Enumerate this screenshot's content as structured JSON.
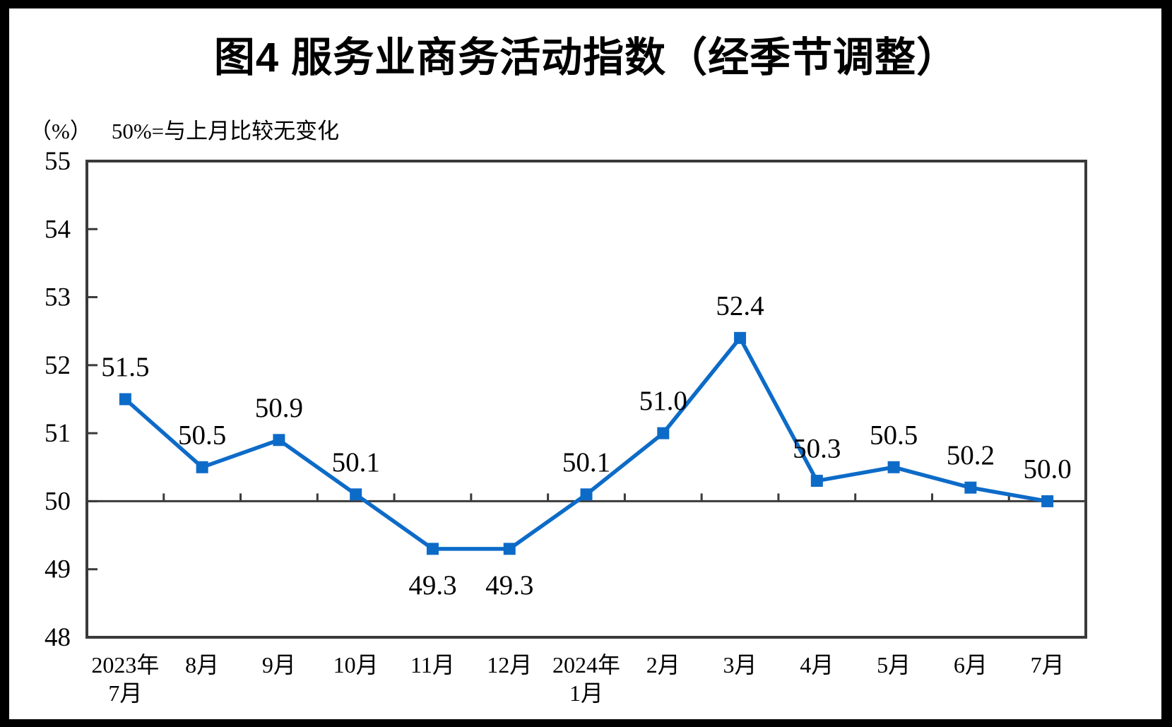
{
  "figure": {
    "title": "图4 服务业商务活动指数（经季节调整）",
    "unit_label": "（%）",
    "note": "50%=与上月比较无变化"
  },
  "chart_data": {
    "type": "line",
    "title": "图4 服务业商务活动指数（经季节调整）",
    "unit": "（%）",
    "note": "50%=与上月比较无变化",
    "categories": [
      "2023年\n7月",
      "8月",
      "9月",
      "10月",
      "11月",
      "12月",
      "2024年\n1月",
      "2月",
      "3月",
      "4月",
      "5月",
      "6月",
      "7月"
    ],
    "series": [
      {
        "name": "服务业商务活动指数",
        "values": [
          51.5,
          50.5,
          50.9,
          50.1,
          49.3,
          49.3,
          50.1,
          51.0,
          52.4,
          50.3,
          50.5,
          50.2,
          50.0
        ]
      }
    ],
    "data_labels": [
      "51.5",
      "50.5",
      "50.9",
      "50.1",
      "49.3",
      "49.3",
      "50.1",
      "51.0",
      "52.4",
      "50.3",
      "50.5",
      "50.2",
      "50.0"
    ],
    "label_below_indices": [
      4,
      5
    ],
    "ylim": [
      48,
      55
    ],
    "y_ticks": [
      48,
      49,
      50,
      51,
      52,
      53,
      54,
      55
    ],
    "reference_value": 50,
    "grid": false,
    "legend_position": "none",
    "colors": {
      "line": "#0D6BC8",
      "marker": "#0D6BC8",
      "axis": "#3A3A3A",
      "text": "#000000",
      "background": "#FFFFFF",
      "outer_border": "#000000"
    }
  }
}
